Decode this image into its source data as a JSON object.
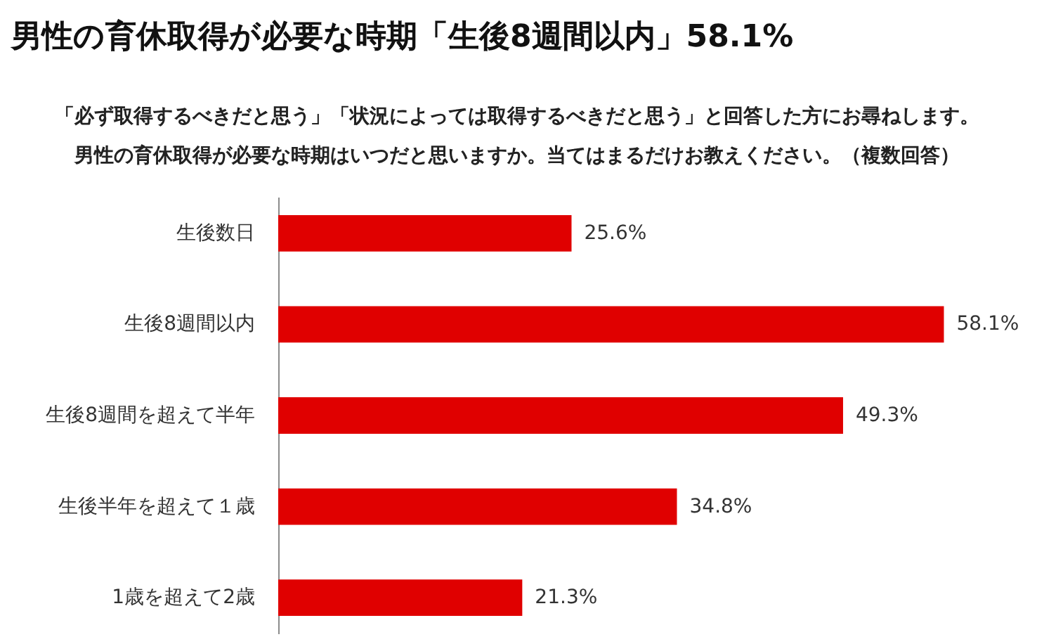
{
  "chart_data": {
    "type": "bar",
    "orientation": "horizontal",
    "title": "男性の育休取得が必要な時期「生後8週間以内」58.1%",
    "subtitle": "「必ず取得するべきだと思う」「状況によっては取得するべきだと思う」と回答した方にお尋ねします。男性の育休取得が必要な時期はいつだと思いますか。当てはまるだけお教えください。（複数回答）",
    "categories": [
      "生後数日",
      "生後8週間以内",
      "生後8週間を超えて半年",
      "生後半年を超えて１歳",
      "1歳を超えて2歳"
    ],
    "values": [
      25.6,
      58.1,
      49.3,
      34.8,
      21.3
    ],
    "value_labels": [
      "25.6%",
      "58.1%",
      "49.3%",
      "34.8%",
      "21.3%"
    ],
    "color": "#e00000",
    "xlim": [
      0,
      65
    ],
    "tick_labels": "y"
  }
}
